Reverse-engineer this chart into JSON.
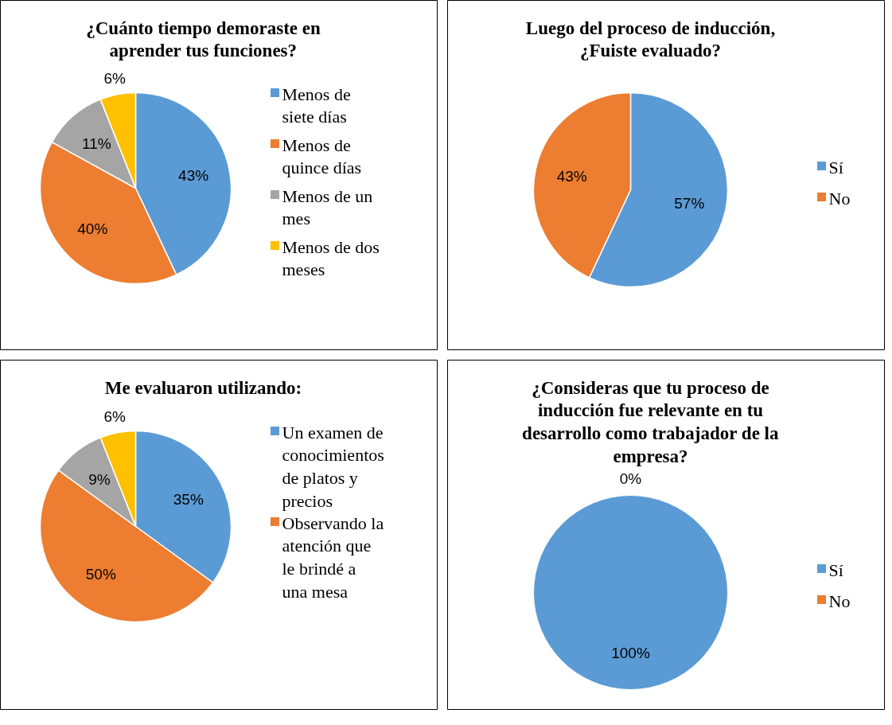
{
  "chart_data": [
    {
      "type": "pie",
      "title": "¿Cuánto tiempo demoraste en aprender tus funciones?",
      "categories": [
        "Menos de siete días",
        "Menos de quince días",
        "Menos de un mes",
        "Menos de dos meses"
      ],
      "values": [
        43,
        40,
        11,
        6
      ],
      "value_labels": [
        "43%",
        "40%",
        "11%",
        "6%"
      ],
      "colors": [
        "#5b9bd5",
        "#ed7d31",
        "#a5a5a5",
        "#ffc000"
      ],
      "legend": "right"
    },
    {
      "type": "pie",
      "title": "Luego del proceso de inducción, ¿Fuiste evaluado?",
      "categories": [
        "Sí",
        "No"
      ],
      "values": [
        57,
        43
      ],
      "value_labels": [
        "57%",
        "43%"
      ],
      "colors": [
        "#5b9bd5",
        "#ed7d31"
      ],
      "legend": "right"
    },
    {
      "type": "pie",
      "title": "Me evaluaron utilizando:",
      "categories": [
        "Un examen de conocimientos de platos y precios",
        "Observando la atención que le brindé a una mesa",
        null,
        null
      ],
      "values": [
        35,
        50,
        9,
        6
      ],
      "value_labels": [
        "35%",
        "50%",
        "9%",
        "6%"
      ],
      "colors": [
        "#5b9bd5",
        "#ed7d31",
        "#a5a5a5",
        "#ffc000"
      ],
      "legend": "right"
    },
    {
      "type": "pie",
      "title": "¿Consideras que tu proceso de inducción fue relevante en tu desarrollo como trabajador de la empresa?",
      "categories": [
        "Sí",
        "No"
      ],
      "values": [
        100,
        0
      ],
      "value_labels": [
        "100%",
        "0%"
      ],
      "colors": [
        "#5b9bd5",
        "#ed7d31"
      ],
      "legend": "right"
    }
  ]
}
